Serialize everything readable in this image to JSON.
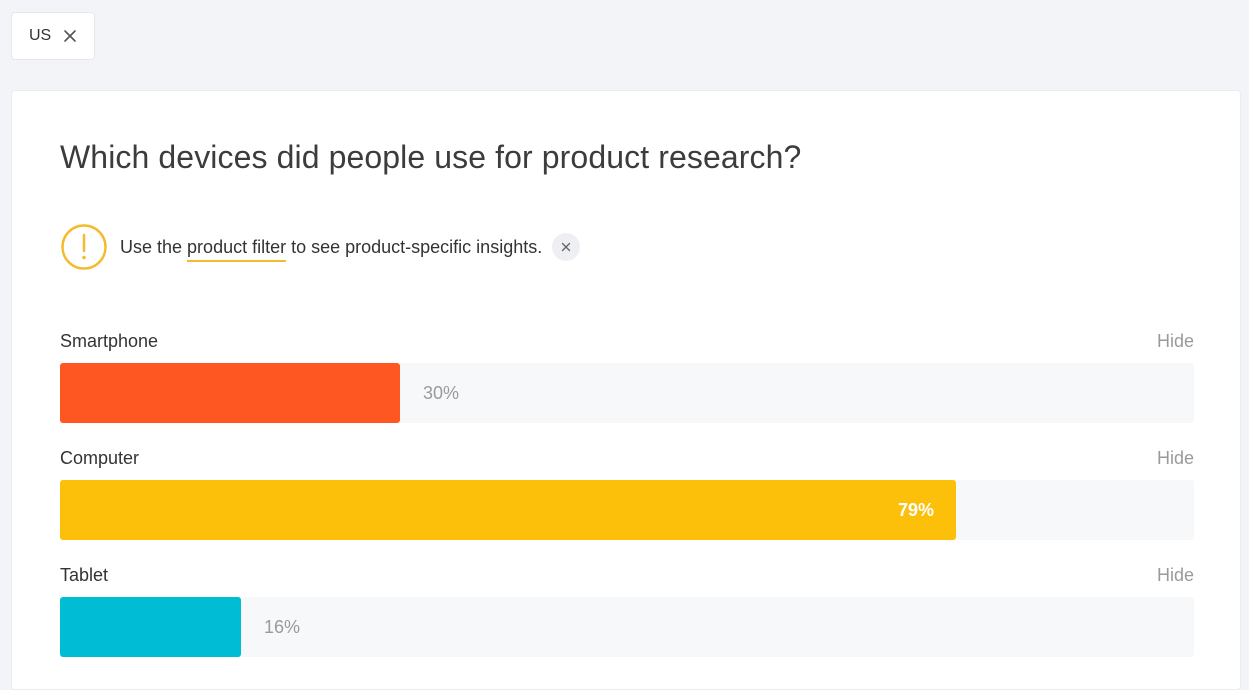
{
  "filter_chip": {
    "label": "US",
    "icon": "close-icon"
  },
  "card": {
    "title": "Which devices did people use for product research?",
    "notice": {
      "icon": "warning-icon",
      "text_before": "Use the ",
      "link_text": "product filter",
      "text_after": " to see product-specific insights.",
      "dismiss_icon": "close-icon",
      "accent_color": "#f4bb2e"
    },
    "devices": [
      {
        "label": "Smartphone",
        "hide_label": "Hide",
        "value_text": "30%",
        "fraction": 0.3,
        "color": "#ff5722"
      },
      {
        "label": "Computer",
        "hide_label": "Hide",
        "value_text": "79%",
        "fraction": 0.79,
        "color": "#fcbf0a"
      },
      {
        "label": "Tablet",
        "hide_label": "Hide",
        "value_text": "16%",
        "fraction": 0.16,
        "color": "#00bcd4"
      }
    ]
  }
}
